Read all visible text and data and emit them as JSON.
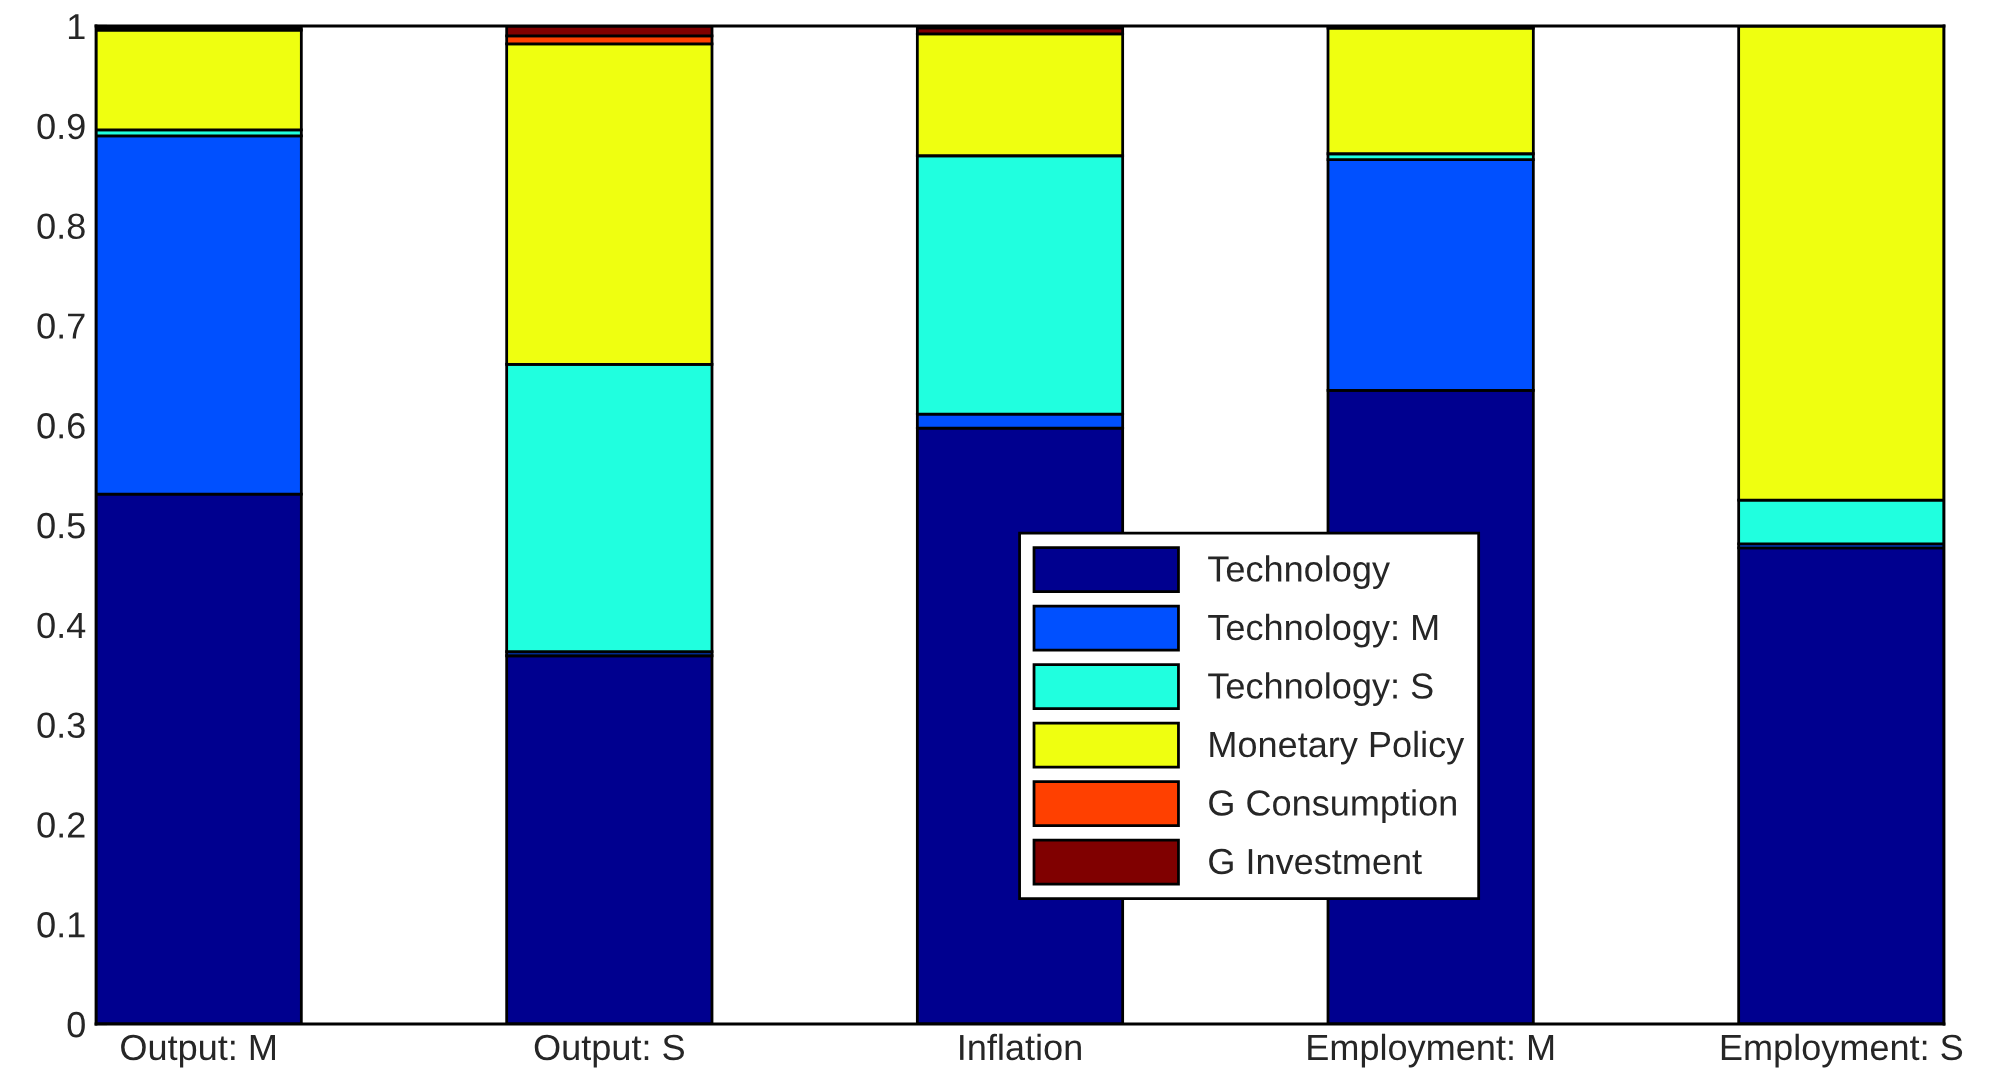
{
  "chart_data": {
    "type": "bar",
    "stacked": true,
    "categories": [
      "Output: M",
      "Output: S",
      "Inflation",
      "Employment: M",
      "Employment: S"
    ],
    "series": [
      {
        "name": "Technology",
        "color": "#00008f",
        "values": [
          0.531,
          0.369,
          0.597,
          0.635,
          0.477
        ]
      },
      {
        "name": "Technology: M",
        "color": "#0050ff",
        "values": [
          0.359,
          0.004,
          0.014,
          0.231,
          0.004
        ]
      },
      {
        "name": "Technology: S",
        "color": "#20ffdf",
        "values": [
          0.006,
          0.288,
          0.259,
          0.006,
          0.044
        ]
      },
      {
        "name": "Monetary Policy",
        "color": "#efff10",
        "values": [
          0.1,
          0.321,
          0.122,
          0.126,
          0.475
        ]
      },
      {
        "name": "G Consumption",
        "color": "#ff4000",
        "values": [
          null,
          0.008,
          null,
          null,
          null
        ]
      },
      {
        "name": "G Investment",
        "color": "#800000",
        "values": [
          0.003,
          0.01,
          0.006,
          0.001,
          null
        ]
      }
    ],
    "ylim": [
      0,
      1
    ],
    "yticks": [
      0,
      0.1,
      0.2,
      0.3,
      0.4,
      0.5,
      0.6,
      0.7,
      0.8,
      0.9,
      1
    ],
    "grid": false,
    "legend": "bottom"
  }
}
